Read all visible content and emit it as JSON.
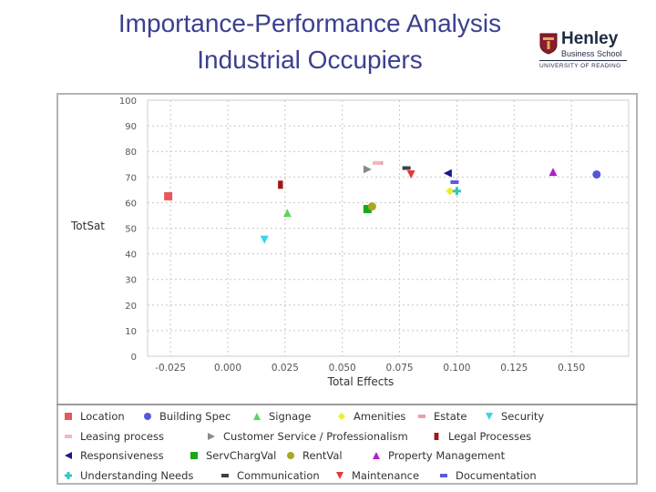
{
  "title": {
    "line1": "Importance-Performance Analysis",
    "line2": "Industrial Occupiers"
  },
  "logo": {
    "name": "Henley",
    "subtitle": "Business School",
    "university": "UNIVERSITY OF READING"
  },
  "colors": {
    "title": "#3b3f8f",
    "gridline": "#c8c8c8",
    "axis_text": "#555555"
  },
  "chart_data": {
    "type": "scatter",
    "title": "",
    "xlabel": "Total Effects",
    "ylabel": "TotSat",
    "xlim": [
      -0.035,
      0.175
    ],
    "ylim": [
      0,
      100
    ],
    "x_ticks": [
      "-0.025",
      "0.000",
      "0.025",
      "0.050",
      "0.075",
      "0.100",
      "0.125",
      "0.150"
    ],
    "x_tick_values": [
      -0.025,
      0.0,
      0.025,
      0.05,
      0.075,
      0.1,
      0.125,
      0.15
    ],
    "y_ticks": [
      "0",
      "10",
      "20",
      "30",
      "40",
      "50",
      "60",
      "70",
      "80",
      "90",
      "100"
    ],
    "y_tick_values": [
      0,
      10,
      20,
      30,
      40,
      50,
      60,
      70,
      80,
      90,
      100
    ],
    "grid": true,
    "legend_position": "bottom",
    "series": [
      {
        "name": "Location",
        "color": "#e8575a",
        "marker": "square",
        "x": -0.026,
        "y": 62.5
      },
      {
        "name": "Building Spec",
        "color": "#5458d8",
        "marker": "circle",
        "x": 0.161,
        "y": 71
      },
      {
        "name": "Signage",
        "color": "#5fd35f",
        "marker": "triangle-up",
        "x": 0.026,
        "y": 56
      },
      {
        "name": "Amenities",
        "color": "#eded28",
        "marker": "diamond",
        "x": 0.097,
        "y": 64.5
      },
      {
        "name": "Estate",
        "color": "#e8a0a8",
        "marker": "dash",
        "x": 0.066,
        "y": 75.5
      },
      {
        "name": "Security",
        "color": "#38d6e8",
        "marker": "triangle-down",
        "x": 0.016,
        "y": 45.5
      },
      {
        "name": "Leasing process",
        "color": "#f2b8bf",
        "marker": "dash",
        "x": 0.065,
        "y": 75.5
      },
      {
        "name": "Customer Service / Professionalism",
        "color": "#8a8a8a",
        "marker": "triangle-right",
        "x": 0.061,
        "y": 73
      },
      {
        "name": "Legal Processes",
        "color": "#a01818",
        "marker": "rect-tall",
        "x": 0.023,
        "y": 67
      },
      {
        "name": "Responsiveness",
        "color": "#1a1a8a",
        "marker": "triangle-left",
        "x": 0.096,
        "y": 71.5
      },
      {
        "name": "ServChargVal",
        "color": "#1aa81a",
        "marker": "square",
        "x": 0.061,
        "y": 57.5
      },
      {
        "name": "RentVal",
        "color": "#a8a822",
        "marker": "circle",
        "x": 0.063,
        "y": 58.5
      },
      {
        "name": "Property Management",
        "color": "#b020c8",
        "marker": "triangle-up",
        "x": 0.142,
        "y": 72
      },
      {
        "name": "Understanding Needs",
        "color": "#30c8c0",
        "marker": "cross",
        "x": 0.1,
        "y": 64.5
      },
      {
        "name": "Communication",
        "color": "#404040",
        "marker": "dash",
        "x": 0.078,
        "y": 73.5
      },
      {
        "name": "Maintenance",
        "color": "#e83838",
        "marker": "triangle-down",
        "x": 0.08,
        "y": 71
      },
      {
        "name": "Documentation",
        "color": "#5a5ad8",
        "marker": "dash",
        "x": 0.099,
        "y": 68
      }
    ]
  }
}
